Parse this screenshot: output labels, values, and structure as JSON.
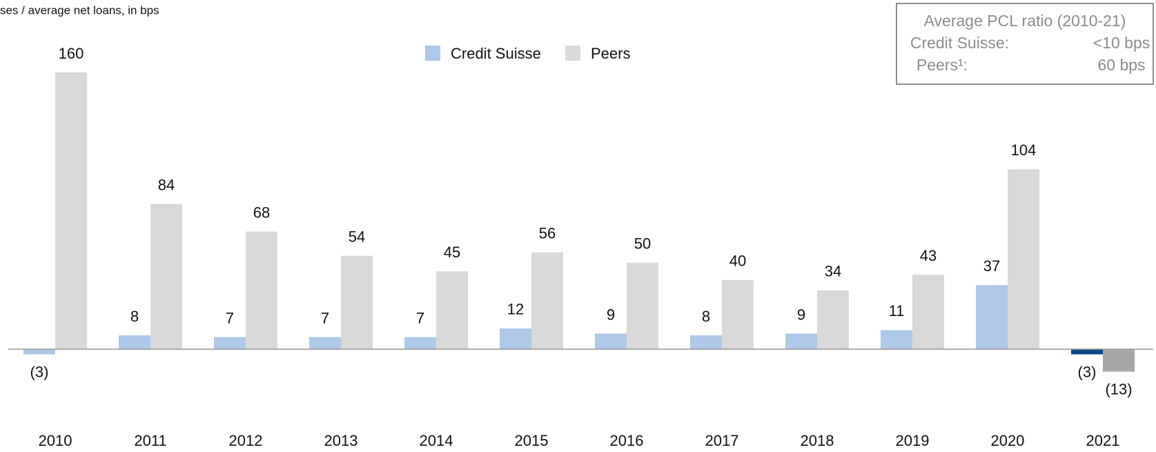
{
  "chart_data": {
    "type": "bar",
    "title": "ses / average net loans, in bps",
    "categories": [
      "2010",
      "2011",
      "2012",
      "2013",
      "2014",
      "2015",
      "2016",
      "2017",
      "2018",
      "2019",
      "2020",
      "2021"
    ],
    "series": [
      {
        "name": "Credit Suisse",
        "color": "#adc8e9",
        "colors": [
          "#adc8e9",
          "#adc8e9",
          "#adc8e9",
          "#adc8e9",
          "#adc8e9",
          "#adc8e9",
          "#adc8e9",
          "#adc8e9",
          "#adc8e9",
          "#adc8e9",
          "#adc8e9",
          "#0b4a8b"
        ],
        "values": [
          -3,
          8,
          7,
          7,
          7,
          12,
          9,
          8,
          9,
          11,
          37,
          -3
        ],
        "value_labels": [
          "(3)",
          "8",
          "7",
          "7",
          "7",
          "12",
          "9",
          "8",
          "9",
          "11",
          "37",
          "(3)"
        ]
      },
      {
        "name": "Peers",
        "color": "#d9d9d9",
        "colors": [
          "#d9d9d9",
          "#d9d9d9",
          "#d9d9d9",
          "#d9d9d9",
          "#d9d9d9",
          "#d9d9d9",
          "#d9d9d9",
          "#d9d9d9",
          "#d9d9d9",
          "#d9d9d9",
          "#d9d9d9",
          "#a6a6a6"
        ],
        "values": [
          160,
          84,
          68,
          54,
          45,
          56,
          50,
          40,
          34,
          43,
          104,
          -13
        ],
        "value_labels": [
          "160",
          "84",
          "68",
          "54",
          "45",
          "56",
          "50",
          "40",
          "34",
          "43",
          "104",
          "(13)"
        ]
      }
    ],
    "annotation": {
      "title": "Average PCL ratio (2010-21)",
      "rows": [
        {
          "label": "Credit Suisse:",
          "value": "<10 bps"
        },
        {
          "label": "Peers¹:",
          "value": "60 bps"
        }
      ]
    }
  }
}
